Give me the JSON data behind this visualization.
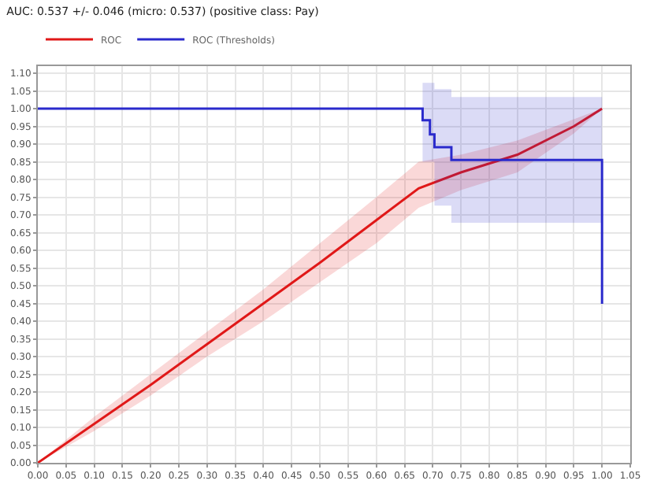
{
  "chart_data": {
    "type": "line",
    "title": "AUC: 0.537 +/- 0.046 (micro: 0.537) (positive class: Pay)",
    "series": [
      {
        "name": "ROC",
        "color": "#e01818",
        "x": [
          0,
          0.1,
          0.2,
          0.3,
          0.4,
          0.5,
          0.6,
          0.675,
          0.75,
          0.85,
          0.95,
          1
        ],
        "values": [
          0,
          0.11,
          0.22,
          0.335,
          0.45,
          0.565,
          0.685,
          0.775,
          0.82,
          0.87,
          0.95,
          1
        ],
        "lower": [
          0,
          0.09,
          0.19,
          0.3,
          0.4,
          0.51,
          0.62,
          0.72,
          0.77,
          0.82,
          0.93,
          1
        ],
        "upper": [
          0,
          0.13,
          0.25,
          0.37,
          0.49,
          0.62,
          0.75,
          0.85,
          0.87,
          0.91,
          0.97,
          1
        ]
      },
      {
        "name": "ROC (Thresholds)",
        "type": "step",
        "color": "#2a2acc",
        "x": [
          0,
          0.682,
          0.695,
          0.703,
          0.733,
          1
        ],
        "values": [
          1,
          0.967,
          0.927,
          0.891,
          0.855,
          0.449
        ],
        "lower": [
          1,
          0.85,
          0.85,
          0.726,
          0.678,
          0.449
        ],
        "upper": [
          1,
          1.073,
          1.073,
          1.055,
          1.033,
          0.449
        ]
      }
    ],
    "xlim": [
      0,
      1.05
    ],
    "ylim": [
      0,
      1.12
    ],
    "xticks": [
      {
        "value": 0,
        "label": "0.00"
      },
      {
        "value": 0.05,
        "label": "0.05"
      },
      {
        "value": 0.1,
        "label": "0.10"
      },
      {
        "value": 0.15,
        "label": "0.15"
      },
      {
        "value": 0.2,
        "label": "0.20"
      },
      {
        "value": 0.25,
        "label": "0.25"
      },
      {
        "value": 0.3,
        "label": "0.30"
      },
      {
        "value": 0.35,
        "label": "0.35"
      },
      {
        "value": 0.4,
        "label": "0.40"
      },
      {
        "value": 0.45,
        "label": "0.45"
      },
      {
        "value": 0.5,
        "label": "0.50"
      },
      {
        "value": 0.55,
        "label": "0.55"
      },
      {
        "value": 0.6,
        "label": "0.60"
      },
      {
        "value": 0.65,
        "label": "0.65"
      },
      {
        "value": 0.7,
        "label": "0.70"
      },
      {
        "value": 0.75,
        "label": "0.75"
      },
      {
        "value": 0.8,
        "label": "0.80"
      },
      {
        "value": 0.85,
        "label": "0.85"
      },
      {
        "value": 0.9,
        "label": "0.90"
      },
      {
        "value": 0.95,
        "label": "0.95"
      },
      {
        "value": 1,
        "label": "1.00"
      },
      {
        "value": 1.05,
        "label": "1.05"
      }
    ],
    "yticks": [
      {
        "value": 0,
        "label": "0.00"
      },
      {
        "value": 0.05,
        "label": "0.05"
      },
      {
        "value": 0.1,
        "label": "0.10"
      },
      {
        "value": 0.15,
        "label": "0.15"
      },
      {
        "value": 0.2,
        "label": "0.20"
      },
      {
        "value": 0.25,
        "label": "0.25"
      },
      {
        "value": 0.3,
        "label": "0.30"
      },
      {
        "value": 0.35,
        "label": "0.35"
      },
      {
        "value": 0.4,
        "label": "0.40"
      },
      {
        "value": 0.45,
        "label": "0.45"
      },
      {
        "value": 0.5,
        "label": "0.50"
      },
      {
        "value": 0.55,
        "label": "0.55"
      },
      {
        "value": 0.6,
        "label": "0.60"
      },
      {
        "value": 0.65,
        "label": "0.65"
      },
      {
        "value": 0.7,
        "label": "0.70"
      },
      {
        "value": 0.75,
        "label": "0.75"
      },
      {
        "value": 0.8,
        "label": "0.80"
      },
      {
        "value": 0.85,
        "label": "0.85"
      },
      {
        "value": 0.9,
        "label": "0.90"
      },
      {
        "value": 0.95,
        "label": "0.95"
      },
      {
        "value": 1,
        "label": "1.00"
      },
      {
        "value": 1.05,
        "label": "1.05"
      },
      {
        "value": 1.1,
        "label": "1.10"
      }
    ],
    "grid": true,
    "legend": "top left",
    "marker": "none",
    "line_style": "solid"
  }
}
